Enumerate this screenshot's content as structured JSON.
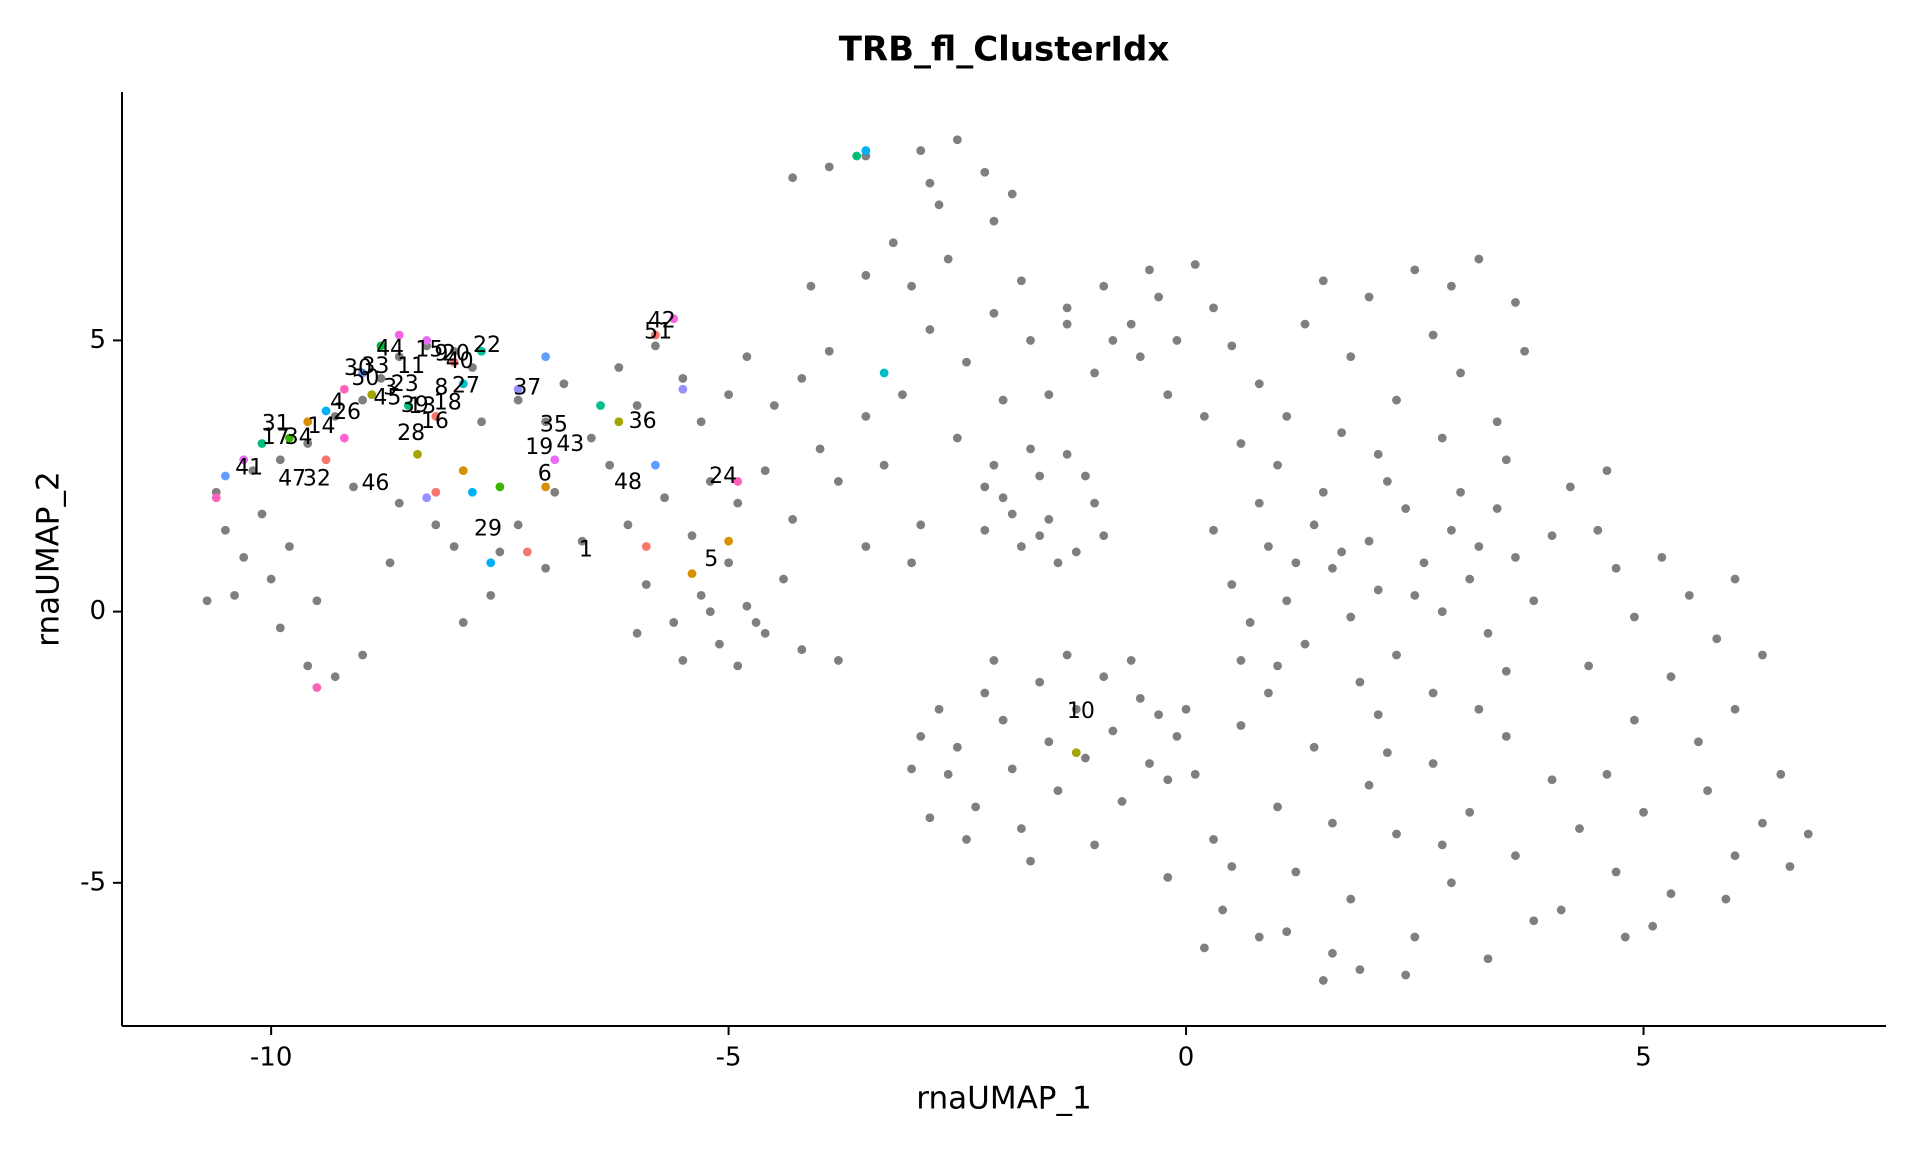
{
  "chart_data": {
    "type": "scatter",
    "title": "TRB_fl_ClusterIdx",
    "x_label": "rnaUMAP_1",
    "y_label": "rnaUMAP_2",
    "xlim": [
      -11.63,
      7.65
    ],
    "ylim": [
      -7.64,
      9.58
    ],
    "xticks": [
      -10,
      -5,
      0,
      5
    ],
    "yticks": [
      -5,
      0,
      5
    ],
    "grid": false,
    "series": [
      {
        "color": "#7f7f7f",
        "x": [
          -10.6,
          -10.5,
          -10.3,
          -10.1,
          -10.0,
          -9.8,
          -10.4,
          -9.9,
          -9.6,
          -9.3,
          -9.0,
          -9.5,
          -10.2,
          -9.9,
          -9.6,
          -9.3,
          -9.0,
          -8.8,
          -8.6,
          -8.3,
          -8.0,
          -7.8,
          -9.1,
          -8.6,
          -8.2,
          -8.7,
          -8.0,
          -7.7,
          -7.6,
          -7.9,
          -10.7,
          -7.3,
          -7.0,
          -6.8,
          -6.5,
          -6.2,
          -6.0,
          -5.8,
          -5.5,
          -5.3,
          -5.0,
          -4.8,
          -4.5,
          -4.2,
          -4.0,
          -4.6,
          -5.2,
          -5.7,
          -6.3,
          -6.9,
          -7.3,
          -7.5,
          -7.0,
          -6.6,
          -6.1,
          -5.4,
          -4.9,
          -4.3,
          -3.8,
          -3.5,
          -3.9,
          -5.9,
          -5.6,
          -5.3,
          -5.1,
          -4.8,
          -4.6,
          -4.4,
          -5.0,
          -5.5,
          -4.9,
          -4.2,
          -3.8,
          -6.0,
          -4.7,
          -5.2,
          -4.3,
          -3.9,
          -3.5,
          -2.9,
          -2.5,
          -2.2,
          -1.9,
          -2.7,
          -3.2,
          -3.5,
          -3.0,
          -2.6,
          -4.1,
          -2.1,
          -2.8,
          -2.8,
          -2.4,
          -2.1,
          -1.7,
          -1.3,
          -0.9,
          -0.6,
          -0.3,
          -1.0,
          -2.0,
          -2.5,
          -3.1,
          -3.3,
          -2.9,
          -1.5,
          -0.5,
          -2.2,
          -3.0,
          -3.5,
          -1.8,
          -2.2,
          -2.0,
          -1.8,
          -1.6,
          -1.5,
          -1.3,
          -1.2,
          -1.0,
          -1.7,
          -1.4,
          -1.9,
          -1.1,
          -1.6,
          -2.1,
          -0.9,
          -2.9,
          -2.7,
          -2.6,
          -2.5,
          -2.3,
          -2.2,
          -2.0,
          -1.9,
          -1.8,
          -1.6,
          -1.5,
          -1.4,
          -1.2,
          -1.1,
          -1.0,
          -0.9,
          -0.8,
          -0.7,
          -0.5,
          -0.4,
          -0.3,
          -0.2,
          -2.8,
          -2.4,
          -1.7,
          -3.0,
          -0.6,
          -1.3,
          -2.1,
          -0.1,
          -1.3,
          -0.8,
          -0.4,
          0.1,
          0.3,
          0.5,
          0.8,
          1.1,
          1.3,
          1.5,
          1.8,
          2.0,
          2.3,
          2.5,
          2.7,
          3.0,
          3.2,
          3.4,
          3.6,
          3.7,
          0.2,
          -0.2,
          0.6,
          1.0,
          2.1,
          2.8,
          3.5,
          -0.1,
          1.7,
          2.9,
          0.5,
          0.7,
          0.9,
          1.1,
          1.3,
          1.4,
          1.6,
          1.8,
          2.0,
          2.1,
          2.3,
          2.4,
          2.6,
          2.8,
          2.9,
          3.1,
          3.3,
          3.4,
          3.6,
          3.8,
          1.0,
          1.5,
          2.2,
          3.0,
          0.3,
          0.6,
          1.9,
          2.7,
          3.5,
          4.0,
          1.2,
          2.5,
          1.7,
          3.2,
          0.8,
          0.1,
          0.3,
          0.4,
          0.6,
          0.8,
          1.0,
          1.2,
          1.4,
          1.6,
          1.8,
          2.0,
          2.1,
          2.3,
          2.5,
          2.7,
          2.9,
          3.1,
          3.3,
          3.5,
          3.6,
          3.8,
          4.0,
          0.2,
          1.5,
          1.9,
          2.4,
          0.9,
          1.6,
          2.8,
          3.2,
          0.5,
          1.1,
          2.2,
          0.0,
          -0.2,
          4.2,
          4.5,
          4.7,
          4.9,
          5.2,
          5.5,
          5.8,
          6.0,
          6.3,
          6.0,
          5.6,
          5.3,
          4.9,
          4.6,
          4.3,
          4.7,
          5.0,
          5.3,
          5.7,
          6.0,
          6.3,
          6.6,
          6.8,
          5.9,
          4.4,
          4.1,
          4.8,
          5.1,
          6.5,
          4.6
        ],
        "y": [
          2.2,
          1.5,
          1.0,
          1.8,
          0.6,
          1.2,
          0.3,
          -0.3,
          -1.0,
          -1.2,
          -0.8,
          0.2,
          2.6,
          2.8,
          3.1,
          3.6,
          3.9,
          4.3,
          4.7,
          4.9,
          4.8,
          4.5,
          2.3,
          2.0,
          1.6,
          0.9,
          1.2,
          3.5,
          0.3,
          -0.2,
          0.2,
          3.9,
          3.5,
          4.2,
          3.2,
          4.5,
          3.8,
          4.9,
          4.3,
          3.5,
          4.0,
          4.7,
          3.8,
          4.3,
          3.0,
          2.6,
          2.4,
          2.1,
          2.7,
          2.2,
          1.6,
          1.1,
          0.8,
          1.3,
          1.6,
          1.4,
          2.0,
          1.7,
          2.4,
          3.6,
          4.8,
          0.5,
          -0.2,
          0.3,
          -0.6,
          0.1,
          -0.4,
          0.6,
          0.9,
          -0.9,
          -1.0,
          -0.7,
          -0.9,
          -0.4,
          -0.2,
          0.0,
          8.0,
          8.2,
          8.4,
          8.5,
          8.7,
          8.1,
          7.7,
          7.5,
          6.8,
          6.2,
          6.0,
          6.5,
          6.0,
          7.2,
          7.9,
          5.2,
          4.6,
          5.5,
          5.0,
          5.6,
          6.0,
          5.3,
          5.8,
          4.4,
          3.9,
          3.2,
          4.0,
          2.7,
          1.6,
          4.0,
          4.7,
          2.3,
          0.9,
          1.2,
          6.1,
          1.5,
          2.1,
          1.2,
          2.5,
          1.7,
          2.9,
          1.1,
          2.0,
          3.0,
          0.9,
          1.8,
          2.5,
          1.4,
          2.7,
          1.4,
          -2.3,
          -1.8,
          -3.0,
          -2.5,
          -3.6,
          -1.5,
          -2.0,
          -2.9,
          -4.0,
          -1.3,
          -2.4,
          -3.3,
          -1.8,
          -2.7,
          -4.3,
          -1.2,
          -2.2,
          -3.5,
          -1.6,
          -2.8,
          -1.9,
          -3.1,
          -3.8,
          -4.2,
          -4.6,
          -2.9,
          -0.9,
          -0.8,
          -0.9,
          -2.3,
          5.3,
          5.0,
          6.3,
          6.4,
          5.6,
          4.9,
          4.2,
          3.6,
          5.3,
          6.1,
          4.7,
          5.8,
          3.9,
          6.3,
          5.1,
          4.4,
          6.5,
          3.5,
          5.7,
          4.8,
          3.6,
          4.0,
          3.1,
          2.7,
          2.9,
          3.2,
          2.8,
          5.0,
          3.3,
          6.0,
          0.5,
          -0.2,
          1.2,
          0.2,
          -0.6,
          1.6,
          0.8,
          -0.1,
          1.3,
          0.4,
          -0.8,
          1.9,
          0.9,
          0.0,
          1.5,
          0.6,
          -0.4,
          1.9,
          1.0,
          0.2,
          -1.0,
          2.2,
          2.4,
          2.2,
          1.5,
          -0.9,
          -1.3,
          -1.5,
          -1.1,
          1.4,
          0.9,
          0.3,
          1.1,
          1.2,
          2.0,
          -3.0,
          -4.2,
          -5.5,
          -2.1,
          -6.0,
          -3.6,
          -4.8,
          -2.5,
          -6.3,
          -5.3,
          -3.2,
          -1.9,
          -4.1,
          -6.0,
          -2.8,
          -5.0,
          -3.7,
          -6.4,
          -2.3,
          -4.5,
          -5.7,
          -3.1,
          -6.2,
          -6.8,
          -6.6,
          -6.7,
          -1.5,
          -3.9,
          -4.3,
          -1.8,
          -4.7,
          -5.9,
          -2.6,
          -1.8,
          -4.9,
          2.3,
          1.5,
          0.8,
          -0.1,
          1.0,
          0.3,
          -0.5,
          0.6,
          -0.8,
          -1.8,
          -2.4,
          -1.2,
          -2.0,
          -3.0,
          -4.0,
          -4.8,
          -3.7,
          -5.2,
          -3.3,
          -4.5,
          -3.9,
          -4.7,
          -4.1,
          -5.3,
          -1.0,
          -5.5,
          -6.0,
          -5.8,
          -3.0,
          2.6
        ]
      },
      {
        "colors": [
          "#f8766d",
          "#f564e3",
          "#00b0f6",
          "#00bf7d",
          "#00bfc4",
          "#f564e3",
          "#e76bf3",
          "#00ba38",
          "#00c19a",
          "#f8766d",
          "#619cff",
          "#ff62bc",
          "#a3a500",
          "#00bf7d",
          "#f8766d",
          "#00bfc4",
          "#00b0f6",
          "#d89000",
          "#39b600",
          "#00bf7d",
          "#e76bf3",
          "#619cff",
          "#ff62bc",
          "#f8766d",
          "#fc61d5",
          "#a3a500",
          "#f8766d",
          "#9590ff",
          "#00b0f6",
          "#39b600",
          "#d89000",
          "#9590ff",
          "#619cff",
          "#d89000",
          "#e76bf3",
          "#00c08b",
          "#a3a500",
          "#619cff",
          "#9590ff",
          "#ff62bc",
          "#d89000",
          "#d89000",
          "#f8766d",
          "#f8766d",
          "#00b0f6",
          "#ff62bc",
          "#a3a500"
        ],
        "x": [
          -5.8,
          -5.6,
          -3.5,
          -3.6,
          -3.3,
          -8.6,
          -8.3,
          -8.8,
          -7.7,
          -8.0,
          -9.0,
          -9.2,
          -8.9,
          -8.5,
          -8.2,
          -7.9,
          -9.4,
          -9.6,
          -9.8,
          -10.1,
          -10.3,
          -10.5,
          -10.6,
          -9.4,
          -9.2,
          -8.4,
          -8.2,
          -8.3,
          -7.8,
          -7.5,
          -7.9,
          -7.3,
          -7.0,
          -7.0,
          -6.9,
          -6.4,
          -6.2,
          -5.8,
          -5.5,
          -4.9,
          -5.0,
          -5.4,
          -5.9,
          -7.2,
          -7.6,
          -9.5,
          -1.2
        ],
        "y": [
          5.1,
          5.4,
          8.5,
          8.4,
          4.4,
          5.1,
          5.0,
          4.9,
          4.8,
          4.6,
          4.4,
          4.1,
          4.0,
          3.8,
          3.6,
          4.2,
          3.7,
          3.5,
          3.2,
          3.1,
          2.8,
          2.5,
          2.1,
          2.8,
          3.2,
          2.9,
          2.2,
          2.1,
          2.2,
          2.3,
          2.6,
          4.1,
          4.7,
          2.3,
          2.8,
          3.8,
          3.5,
          2.7,
          4.1,
          2.4,
          1.3,
          0.7,
          1.2,
          1.1,
          0.9,
          -1.4,
          -2.6
        ]
      }
    ],
    "annotations": [
      {
        "text": "42",
        "x": -5.73,
        "y": 5.35
      },
      {
        "text": "51",
        "x": -5.77,
        "y": 5.15
      },
      {
        "text": "22",
        "x": -7.64,
        "y": 4.9
      },
      {
        "text": "44",
        "x": -8.7,
        "y": 4.83
      },
      {
        "text": "15",
        "x": -8.27,
        "y": 4.81
      },
      {
        "text": "20",
        "x": -7.98,
        "y": 4.74
      },
      {
        "text": "40",
        "x": -7.94,
        "y": 4.6
      },
      {
        "text": "9",
        "x": -8.14,
        "y": 4.74
      },
      {
        "text": "33",
        "x": -8.86,
        "y": 4.51
      },
      {
        "text": "30",
        "x": -9.05,
        "y": 4.47
      },
      {
        "text": "11",
        "x": -8.47,
        "y": 4.51
      },
      {
        "text": "50",
        "x": -8.97,
        "y": 4.29
      },
      {
        "text": "3",
        "x": -8.7,
        "y": 4.11
      },
      {
        "text": "23",
        "x": -8.54,
        "y": 4.18
      },
      {
        "text": "8",
        "x": -8.14,
        "y": 4.11
      },
      {
        "text": "27",
        "x": -7.87,
        "y": 4.15
      },
      {
        "text": "45",
        "x": -8.73,
        "y": 3.93
      },
      {
        "text": "18",
        "x": -8.07,
        "y": 3.84
      },
      {
        "text": "39",
        "x": -8.43,
        "y": 3.79
      },
      {
        "text": "13",
        "x": -8.35,
        "y": 3.77
      },
      {
        "text": "16",
        "x": -8.21,
        "y": 3.5
      },
      {
        "text": "28",
        "x": -8.47,
        "y": 3.27
      },
      {
        "text": "4",
        "x": -9.28,
        "y": 3.85
      },
      {
        "text": "26",
        "x": -9.17,
        "y": 3.66
      },
      {
        "text": "14",
        "x": -9.45,
        "y": 3.4
      },
      {
        "text": "31",
        "x": -9.95,
        "y": 3.45
      },
      {
        "text": "17",
        "x": -9.95,
        "y": 3.2
      },
      {
        "text": "34",
        "x": -9.7,
        "y": 3.2
      },
      {
        "text": "41",
        "x": -10.24,
        "y": 2.64
      },
      {
        "text": "47",
        "x": -9.77,
        "y": 2.44
      },
      {
        "text": "32",
        "x": -9.5,
        "y": 2.44
      },
      {
        "text": "46",
        "x": -8.86,
        "y": 2.35
      },
      {
        "text": "37",
        "x": -7.2,
        "y": 4.11
      },
      {
        "text": "35",
        "x": -6.91,
        "y": 3.43
      },
      {
        "text": "19",
        "x": -7.07,
        "y": 3.02
      },
      {
        "text": "43",
        "x": -6.73,
        "y": 3.07
      },
      {
        "text": "6",
        "x": -7.01,
        "y": 2.53
      },
      {
        "text": "36",
        "x": -5.94,
        "y": 3.5
      },
      {
        "text": "48",
        "x": -6.1,
        "y": 2.37
      },
      {
        "text": "24",
        "x": -5.06,
        "y": 2.48
      },
      {
        "text": "29",
        "x": -7.63,
        "y": 1.51
      },
      {
        "text": "1",
        "x": -6.56,
        "y": 1.13
      },
      {
        "text": "5",
        "x": -5.19,
        "y": 0.95
      },
      {
        "text": "10",
        "x": -1.15,
        "y": -1.85
      }
    ]
  }
}
